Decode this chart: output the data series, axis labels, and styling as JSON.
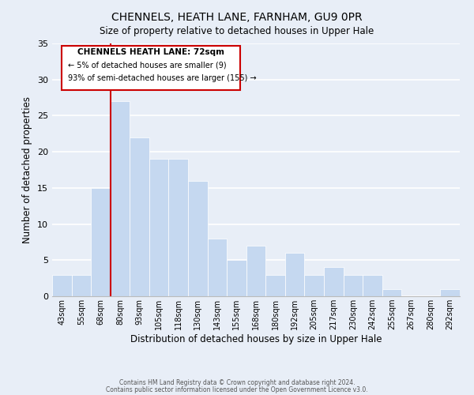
{
  "title": "CHENNELS, HEATH LANE, FARNHAM, GU9 0PR",
  "subtitle": "Size of property relative to detached houses in Upper Hale",
  "xlabel": "Distribution of detached houses by size in Upper Hale",
  "ylabel": "Number of detached properties",
  "bar_color": "#c5d8f0",
  "bar_edge_color": "#ffffff",
  "bins": [
    "43sqm",
    "55sqm",
    "68sqm",
    "80sqm",
    "93sqm",
    "105sqm",
    "118sqm",
    "130sqm",
    "143sqm",
    "155sqm",
    "168sqm",
    "180sqm",
    "192sqm",
    "205sqm",
    "217sqm",
    "230sqm",
    "242sqm",
    "255sqm",
    "267sqm",
    "280sqm",
    "292sqm"
  ],
  "values": [
    3,
    3,
    15,
    27,
    22,
    19,
    19,
    16,
    8,
    5,
    7,
    3,
    6,
    3,
    4,
    3,
    3,
    1,
    0,
    0,
    1
  ],
  "marker_bin_index": 2,
  "marker_color": "#cc0000",
  "ylim": [
    0,
    35
  ],
  "yticks": [
    0,
    5,
    10,
    15,
    20,
    25,
    30,
    35
  ],
  "annotation_title": "CHENNELS HEATH LANE: 72sqm",
  "annotation_line1": "← 5% of detached houses are smaller (9)",
  "annotation_line2": "93% of semi-detached houses are larger (155) →",
  "footer_line1": "Contains HM Land Registry data © Crown copyright and database right 2024.",
  "footer_line2": "Contains public sector information licensed under the Open Government Licence v3.0.",
  "background_color": "#e8eef7",
  "plot_background": "#e8eef7"
}
